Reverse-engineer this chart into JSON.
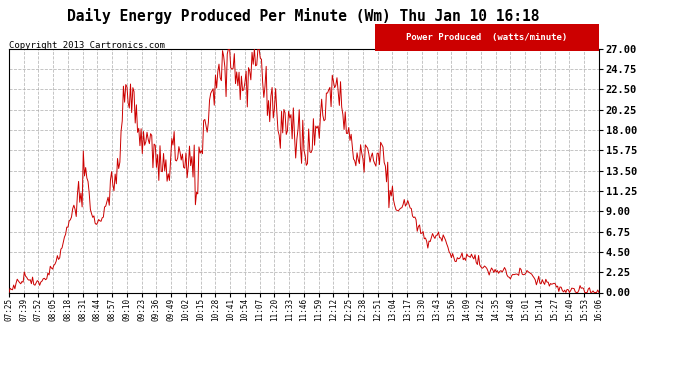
{
  "title": "Daily Energy Produced Per Minute (Wm) Thu Jan 10 16:18",
  "copyright": "Copyright 2013 Cartronics.com",
  "legend_label": "Power Produced  (watts/minute)",
  "legend_bg": "#cc0000",
  "legend_fg": "#ffffff",
  "ymin": 0.0,
  "ymax": 27.0,
  "ytick_step": 2.25,
  "background_color": "#ffffff",
  "grid_color": "#aaaaaa",
  "line_color": "#cc0000",
  "title_color": "#000000",
  "x_labels": [
    "07:25",
    "07:39",
    "07:52",
    "08:05",
    "08:18",
    "08:31",
    "08:44",
    "08:57",
    "09:10",
    "09:23",
    "09:36",
    "09:49",
    "10:02",
    "10:15",
    "10:28",
    "10:41",
    "10:54",
    "11:07",
    "11:20",
    "11:33",
    "11:46",
    "11:59",
    "12:12",
    "12:25",
    "12:38",
    "12:51",
    "13:04",
    "13:17",
    "13:30",
    "13:43",
    "13:56",
    "14:09",
    "14:22",
    "14:35",
    "14:48",
    "15:01",
    "15:14",
    "15:27",
    "15:40",
    "15:53",
    "16:06"
  ],
  "curve_keypoints": [
    [
      0,
      0.2
    ],
    [
      5,
      0.8
    ],
    [
      10,
      1.5
    ],
    [
      15,
      2.0
    ],
    [
      20,
      1.2
    ],
    [
      25,
      0.8
    ],
    [
      30,
      1.5
    ],
    [
      35,
      2.5
    ],
    [
      40,
      3.5
    ],
    [
      45,
      5.0
    ],
    [
      50,
      7.5
    ],
    [
      55,
      9.5
    ],
    [
      60,
      11.0
    ],
    [
      65,
      12.5
    ],
    [
      70,
      8.5
    ],
    [
      75,
      7.5
    ],
    [
      80,
      8.5
    ],
    [
      85,
      10.5
    ],
    [
      90,
      11.5
    ],
    [
      95,
      17.0
    ],
    [
      100,
      24.5
    ],
    [
      105,
      21.0
    ],
    [
      110,
      16.5
    ],
    [
      115,
      17.0
    ],
    [
      120,
      16.5
    ],
    [
      125,
      15.0
    ],
    [
      130,
      13.5
    ],
    [
      135,
      14.0
    ],
    [
      140,
      16.5
    ],
    [
      145,
      15.0
    ],
    [
      150,
      13.5
    ],
    [
      155,
      14.0
    ],
    [
      160,
      12.5
    ],
    [
      165,
      18.5
    ],
    [
      170,
      21.0
    ],
    [
      175,
      24.0
    ],
    [
      180,
      25.0
    ],
    [
      185,
      26.5
    ],
    [
      190,
      25.5
    ],
    [
      195,
      24.0
    ],
    [
      200,
      22.5
    ],
    [
      205,
      24.0
    ],
    [
      210,
      26.5
    ],
    [
      215,
      24.0
    ],
    [
      220,
      22.0
    ],
    [
      225,
      21.0
    ],
    [
      230,
      19.0
    ],
    [
      235,
      18.5
    ],
    [
      240,
      19.5
    ],
    [
      245,
      17.5
    ],
    [
      250,
      15.5
    ],
    [
      255,
      16.0
    ],
    [
      260,
      17.5
    ],
    [
      265,
      19.0
    ],
    [
      270,
      22.5
    ],
    [
      275,
      23.0
    ],
    [
      280,
      22.0
    ],
    [
      285,
      20.0
    ],
    [
      290,
      16.0
    ],
    [
      295,
      14.5
    ],
    [
      300,
      15.5
    ],
    [
      305,
      16.0
    ],
    [
      310,
      14.5
    ],
    [
      315,
      15.5
    ],
    [
      320,
      14.0
    ],
    [
      325,
      10.5
    ],
    [
      330,
      9.0
    ],
    [
      335,
      10.0
    ],
    [
      340,
      9.5
    ],
    [
      345,
      7.5
    ],
    [
      350,
      6.5
    ],
    [
      355,
      5.5
    ],
    [
      360,
      6.0
    ],
    [
      365,
      6.5
    ],
    [
      370,
      6.0
    ],
    [
      375,
      4.0
    ],
    [
      380,
      3.5
    ],
    [
      385,
      4.0
    ],
    [
      390,
      4.2
    ],
    [
      395,
      3.8
    ],
    [
      400,
      3.0
    ],
    [
      405,
      2.5
    ],
    [
      410,
      2.2
    ],
    [
      415,
      2.5
    ],
    [
      420,
      2.2
    ],
    [
      425,
      1.8
    ],
    [
      430,
      2.0
    ],
    [
      435,
      2.3
    ],
    [
      440,
      2.0
    ],
    [
      445,
      1.5
    ],
    [
      450,
      1.2
    ],
    [
      455,
      1.0
    ],
    [
      460,
      0.8
    ],
    [
      465,
      0.5
    ],
    [
      470,
      0.3
    ],
    [
      475,
      0.2
    ],
    [
      480,
      0.1
    ],
    [
      485,
      0.05
    ],
    [
      490,
      0.02
    ],
    [
      495,
      0.01
    ],
    [
      500,
      0.01
    ]
  ]
}
